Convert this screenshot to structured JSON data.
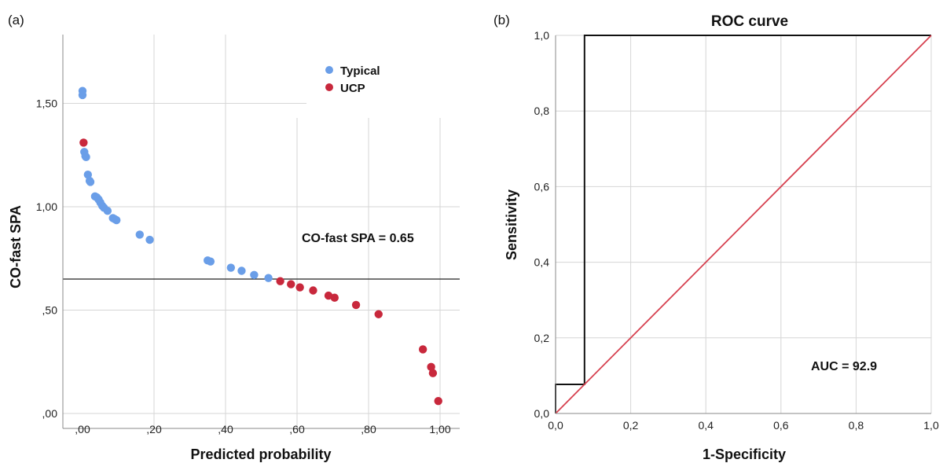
{
  "chart_data": [
    {
      "panel": "(a)",
      "type": "scatter",
      "title": "",
      "xlabel": "Predicted probability",
      "ylabel": "CO-fast SPA",
      "xlim": [
        0,
        1
      ],
      "ylim": [
        0,
        1.65
      ],
      "x_ticks": [
        ",00",
        ",20",
        ",40",
        ",60",
        ",80",
        "1,00"
      ],
      "x_tick_values": [
        0,
        0.2,
        0.4,
        0.6,
        0.8,
        1.0
      ],
      "y_ticks": [
        ",00",
        ",50",
        "1,00",
        "1,50"
      ],
      "y_tick_values": [
        0,
        0.5,
        1.0,
        1.5
      ],
      "grid": true,
      "legend_position": "top-right",
      "reference_line": {
        "y": 0.65,
        "label": "CO-fast SPA = 0.65"
      },
      "series": [
        {
          "name": "Typical",
          "color": "#6a9ee8",
          "points": [
            [
              0.0,
              1.56
            ],
            [
              0.0,
              1.54
            ],
            [
              0.005,
              1.265
            ],
            [
              0.008,
              1.245
            ],
            [
              0.01,
              1.24
            ],
            [
              0.015,
              1.155
            ],
            [
              0.02,
              1.125
            ],
            [
              0.022,
              1.12
            ],
            [
              0.035,
              1.05
            ],
            [
              0.04,
              1.045
            ],
            [
              0.045,
              1.035
            ],
            [
              0.05,
              1.02
            ],
            [
              0.055,
              1.005
            ],
            [
              0.06,
              0.995
            ],
            [
              0.07,
              0.98
            ],
            [
              0.085,
              0.945
            ],
            [
              0.09,
              0.94
            ],
            [
              0.095,
              0.935
            ],
            [
              0.16,
              0.865
            ],
            [
              0.188,
              0.84
            ],
            [
              0.35,
              0.74
            ],
            [
              0.358,
              0.735
            ],
            [
              0.415,
              0.705
            ],
            [
              0.445,
              0.69
            ],
            [
              0.48,
              0.67
            ],
            [
              0.52,
              0.655
            ]
          ]
        },
        {
          "name": "UCP",
          "color": "#c8283c",
          "points": [
            [
              0.003,
              1.31
            ],
            [
              0.553,
              0.64
            ],
            [
              0.583,
              0.625
            ],
            [
              0.608,
              0.61
            ],
            [
              0.645,
              0.595
            ],
            [
              0.688,
              0.57
            ],
            [
              0.705,
              0.56
            ],
            [
              0.765,
              0.525
            ],
            [
              0.828,
              0.48
            ],
            [
              0.952,
              0.31
            ],
            [
              0.975,
              0.225
            ],
            [
              0.98,
              0.195
            ],
            [
              0.995,
              0.06
            ]
          ]
        }
      ]
    },
    {
      "panel": "(b)",
      "type": "line",
      "title": "ROC curve",
      "xlabel": "1-Specificity",
      "ylabel": "Sensitivity",
      "xlim": [
        0,
        1
      ],
      "ylim": [
        0,
        1
      ],
      "x_ticks": [
        "0,0",
        "0,2",
        "0,4",
        "0,6",
        "0,8",
        "1,0"
      ],
      "x_tick_values": [
        0,
        0.2,
        0.4,
        0.6,
        0.8,
        1.0
      ],
      "y_ticks": [
        "0,0",
        "0,2",
        "0,4",
        "0,6",
        "0,8",
        "1,0"
      ],
      "y_tick_values": [
        0,
        0.2,
        0.4,
        0.6,
        0.8,
        1.0
      ],
      "grid": true,
      "annotation": "AUC = 92.9",
      "series": [
        {
          "color": "#111111",
          "points": [
            [
              0,
              0
            ],
            [
              0,
              0.077
            ],
            [
              0.077,
              0.077
            ],
            [
              0.077,
              1.0
            ],
            [
              1.0,
              1.0
            ]
          ]
        },
        {
          "color": "#d6404f",
          "points": [
            [
              0,
              0
            ],
            [
              1.0,
              1.0
            ]
          ]
        }
      ]
    }
  ]
}
